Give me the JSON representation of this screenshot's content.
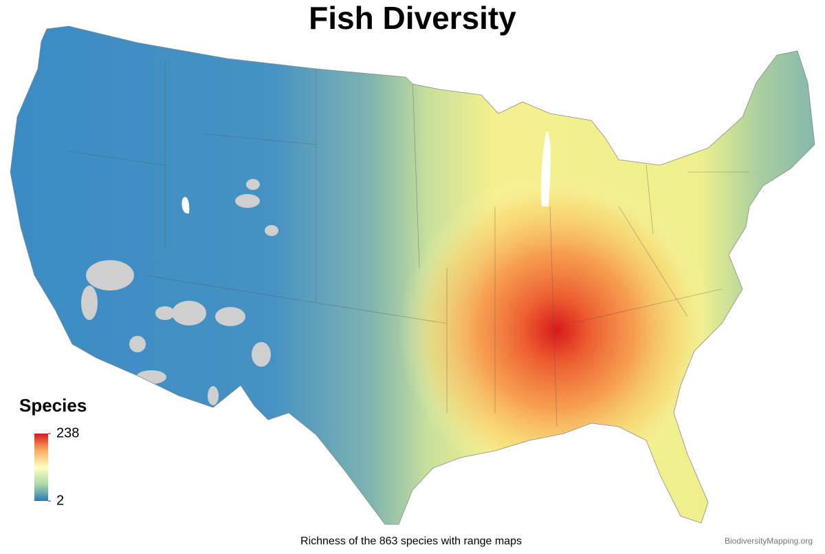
{
  "title": "Fish Diversity",
  "legend": {
    "title": "Species",
    "range": [
      2,
      238
    ],
    "ticks": [
      238,
      2
    ],
    "colors": [
      "#2c7bb6",
      "#abd9a8",
      "#ffffbf",
      "#fdae61",
      "#d7191c"
    ]
  },
  "caption": "Richness of the 863 species with range maps",
  "credit": "BiodiversityMapping.org"
}
